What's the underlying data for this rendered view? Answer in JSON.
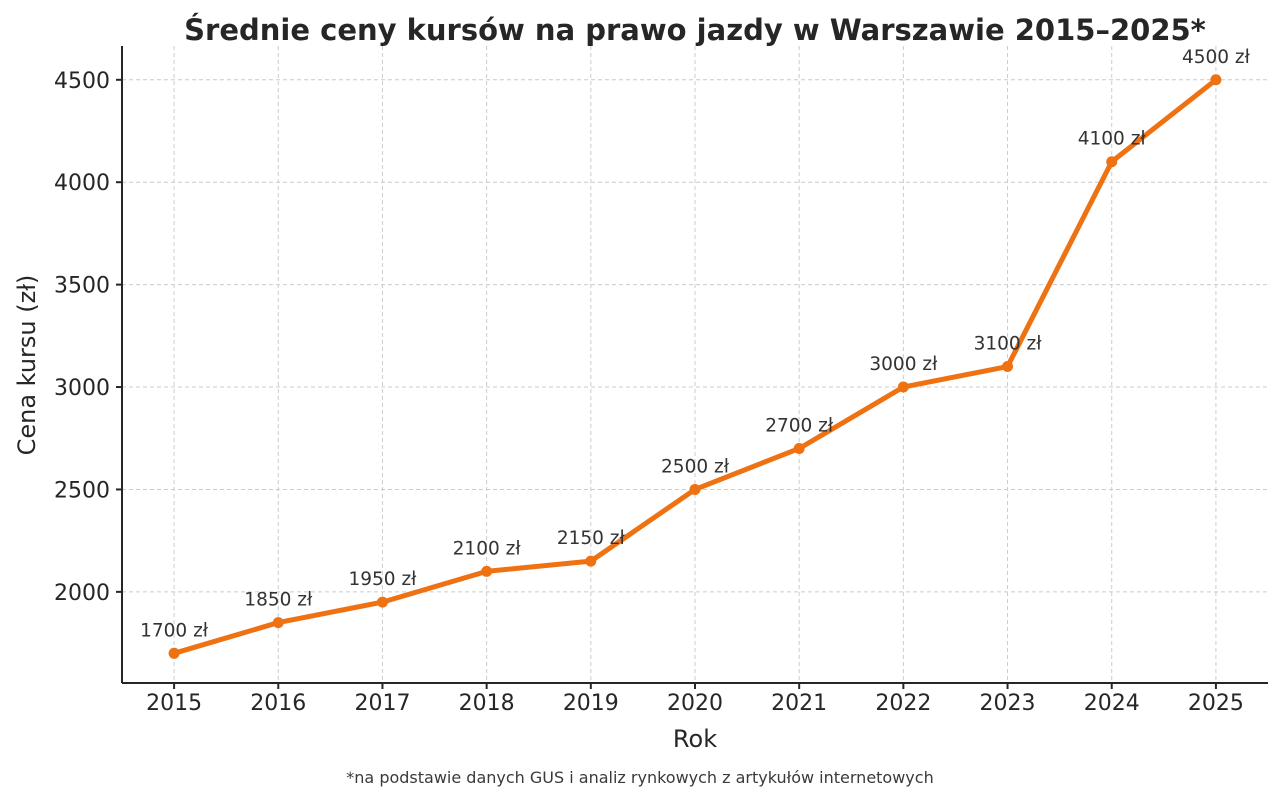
{
  "chart_data": {
    "type": "line",
    "title": "Średnie ceny kursów na prawo jazdy w Warszawie 2015–2025*",
    "xlabel": "Rok",
    "ylabel": "Cena kursu (zł)",
    "footnote": "*na podstawie danych GUS i analiz rynkowych z artykułów internetowych",
    "x": [
      2015,
      2016,
      2017,
      2018,
      2019,
      2020,
      2021,
      2022,
      2023,
      2024,
      2025
    ],
    "values": [
      1700,
      1850,
      1950,
      2100,
      2150,
      2500,
      2700,
      3000,
      3100,
      4100,
      4500
    ],
    "point_labels": [
      "1700 zł",
      "1850 zł",
      "1950 zł",
      "2100 zł",
      "2150 zł",
      "2500 zł",
      "2700 zł",
      "3000 zł",
      "3100 zł",
      "4100 zł",
      "4500 zł"
    ],
    "xtick_labels": [
      "2015",
      "2016",
      "2017",
      "2018",
      "2019",
      "2020",
      "2021",
      "2022",
      "2023",
      "2024",
      "2025"
    ],
    "yticks": [
      2000,
      2500,
      3000,
      3500,
      4000,
      4500
    ],
    "xlim": [
      2014.5,
      2025.5
    ],
    "ylim": [
      1555,
      4665
    ],
    "grid": true,
    "legend": "none",
    "colors": {
      "line": "#EE7112",
      "grid": "#cccccc",
      "spine": "#262626",
      "ticktext": "#262626",
      "datalabel": "#333333",
      "title": "#262626",
      "footnote": "#3a3a3a",
      "background": "#ffffff"
    }
  }
}
